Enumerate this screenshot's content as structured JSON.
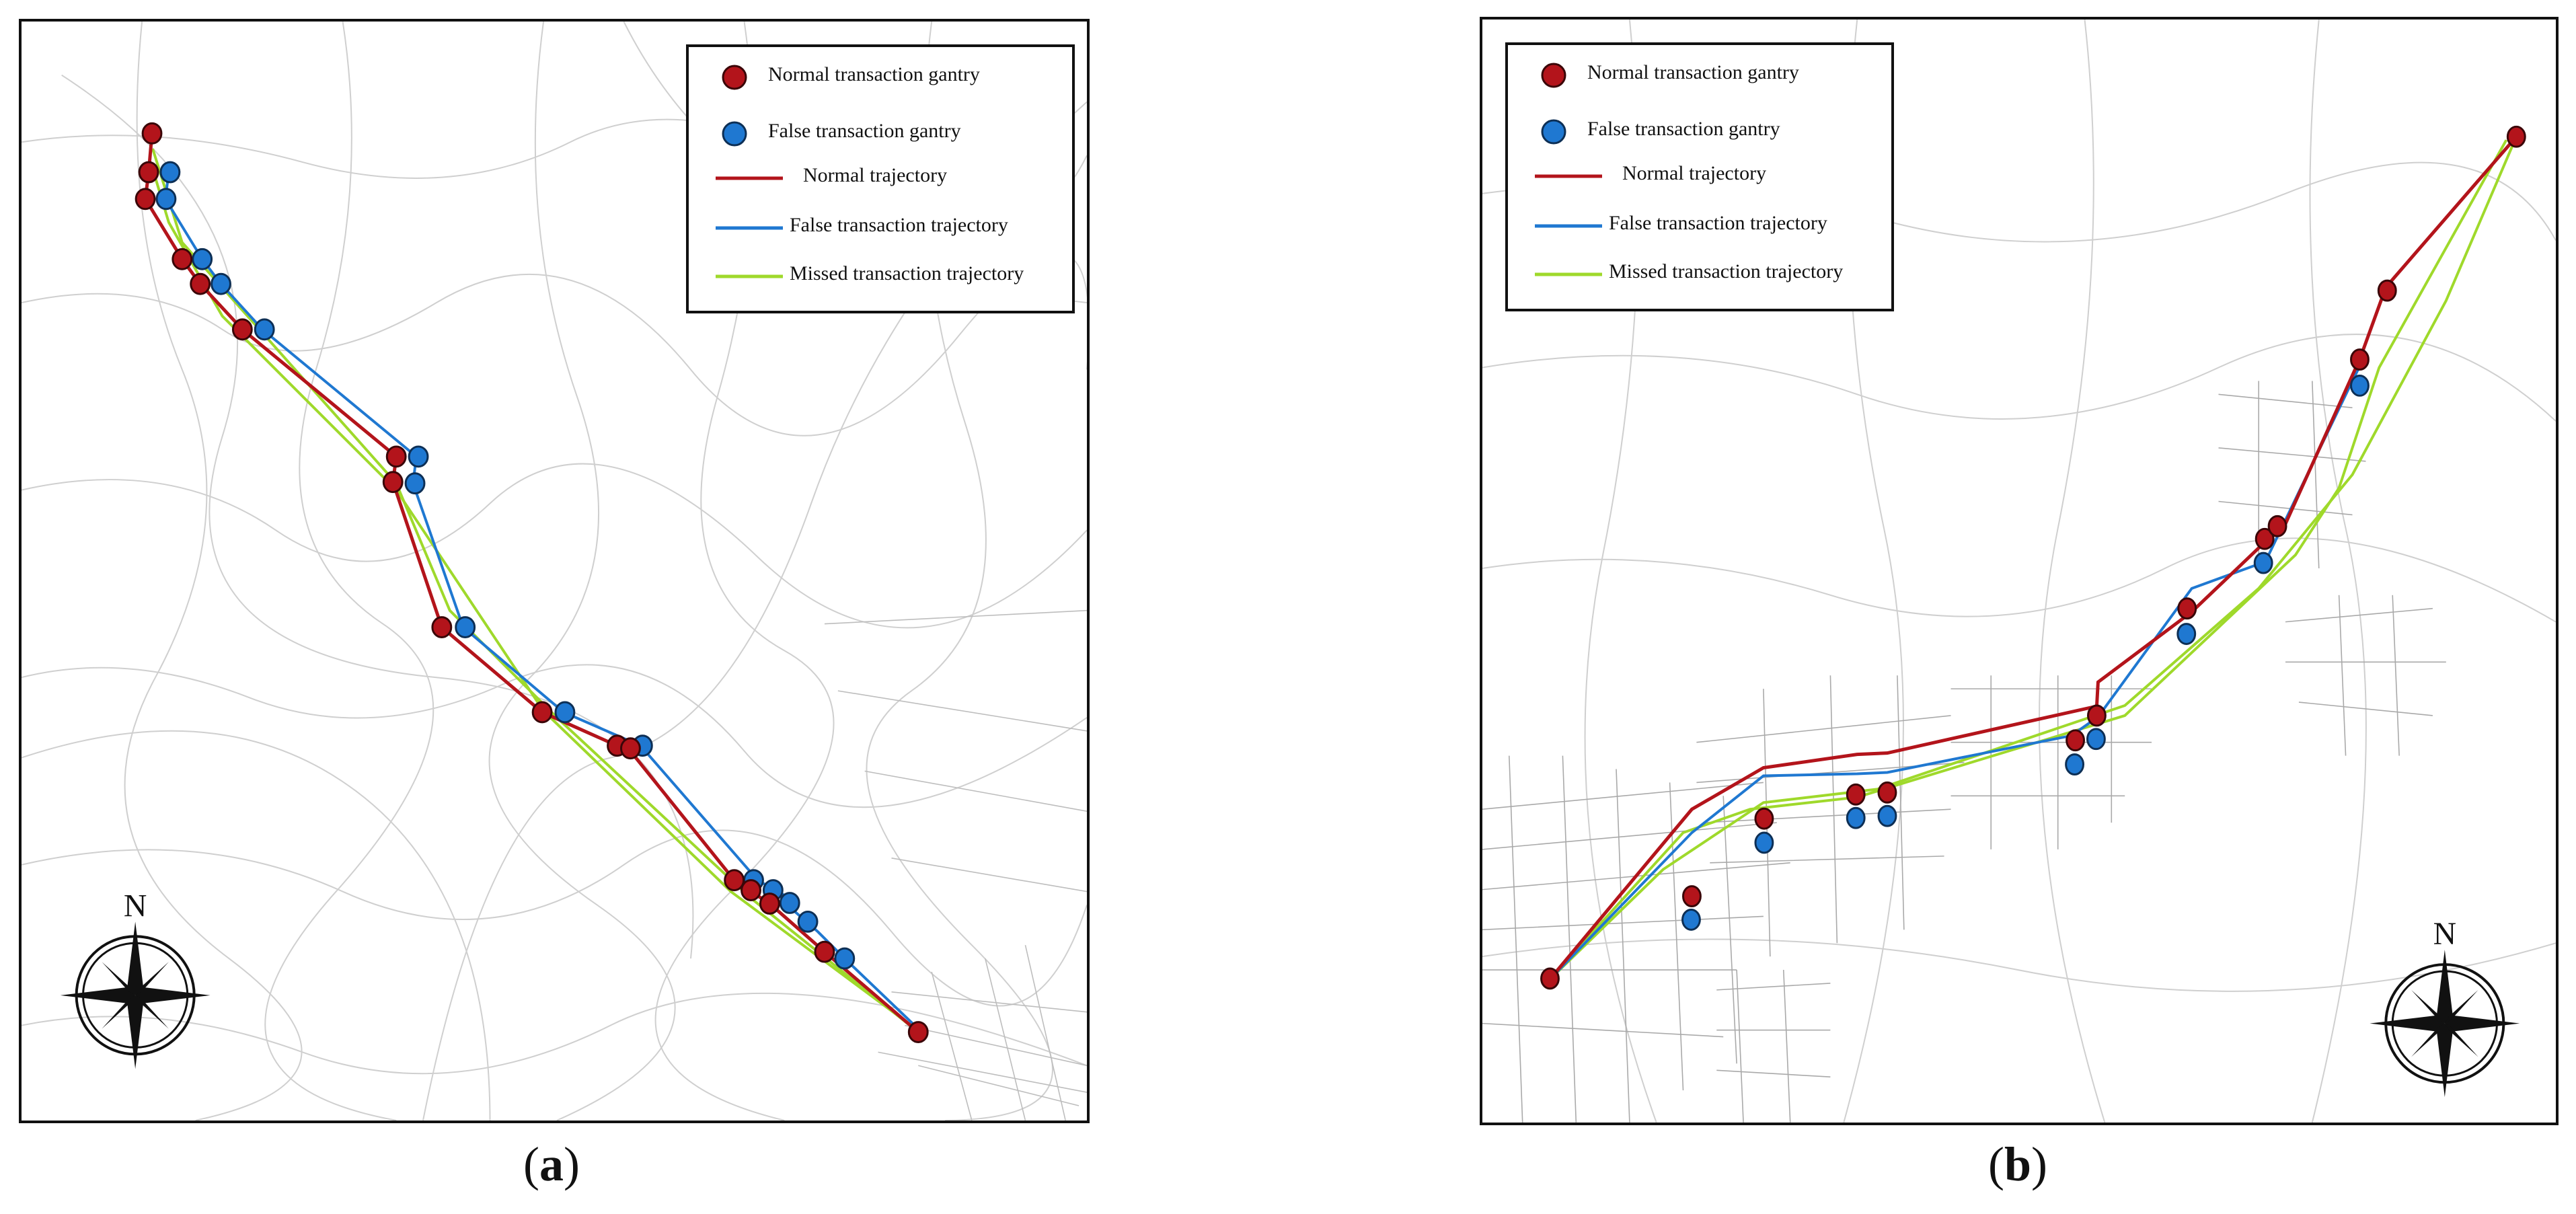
{
  "legend": {
    "normal_gantry": "Normal transaction gantry",
    "false_gantry": "False transaction gantry",
    "normal_trajectory": "Normal trajectory",
    "false_trajectory": "False transaction trajectory",
    "missed_trajectory": "Missed transaction trajectory"
  },
  "north_label": "N",
  "captions": {
    "a_open": "(",
    "a_letter": "a",
    "a_close": ")",
    "b_open": "(",
    "b_letter": "b",
    "b_close": ")"
  },
  "colors": {
    "normal": "#b3141b",
    "false": "#1f78d1",
    "missed": "#9fd92b",
    "roads": "#c9c9c9",
    "frame": "#111111"
  }
}
